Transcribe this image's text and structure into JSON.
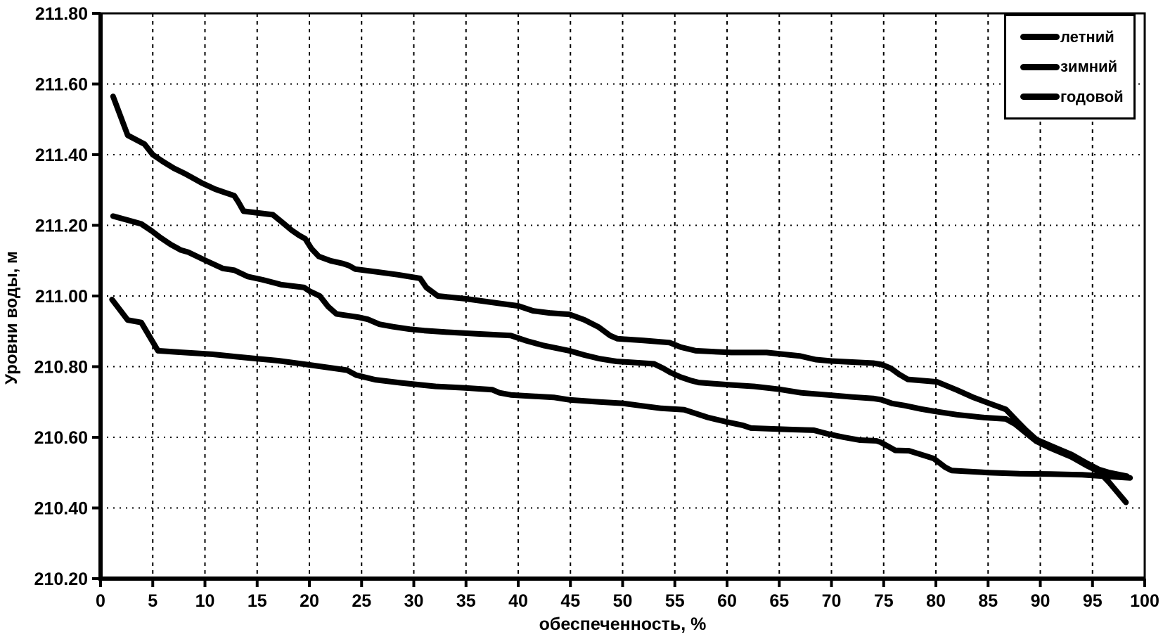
{
  "chart_data": {
    "type": "line",
    "title": "",
    "xlabel": "обеспеченность, %",
    "ylabel": "Уровни воды, м",
    "xlim": [
      0,
      100
    ],
    "ylim": [
      210.2,
      211.8
    ],
    "x_ticks": [
      0,
      5,
      10,
      15,
      20,
      25,
      30,
      35,
      40,
      45,
      50,
      55,
      60,
      65,
      70,
      75,
      80,
      85,
      90,
      95,
      100
    ],
    "y_tick_labels": [
      "211.80",
      "211.60",
      "211.40",
      "211.20",
      "211.00",
      "210.80",
      "210.60",
      "210.40",
      "210.20"
    ],
    "grid": "dashed",
    "legend_position": "top-right",
    "line_color": "#000000",
    "line_width": 8,
    "series": [
      {
        "id": "letniy",
        "name": "летний",
        "points": [
          [
            1.2,
            211.565
          ],
          [
            2.6,
            211.455
          ],
          [
            4.2,
            211.43
          ],
          [
            5.0,
            211.4
          ],
          [
            6.0,
            211.38
          ],
          [
            7.0,
            211.362
          ],
          [
            8.1,
            211.346
          ],
          [
            9.7,
            211.32
          ],
          [
            11.0,
            211.302
          ],
          [
            12.0,
            211.292
          ],
          [
            12.8,
            211.284
          ],
          [
            13.2,
            211.266
          ],
          [
            13.7,
            211.24
          ],
          [
            16.5,
            211.23
          ],
          [
            17.5,
            211.206
          ],
          [
            18.3,
            211.186
          ],
          [
            19.0,
            211.172
          ],
          [
            19.6,
            211.162
          ],
          [
            20.2,
            211.134
          ],
          [
            20.9,
            211.112
          ],
          [
            22.0,
            211.1
          ],
          [
            23.2,
            211.092
          ],
          [
            23.8,
            211.086
          ],
          [
            24.4,
            211.076
          ],
          [
            26.5,
            211.068
          ],
          [
            28.5,
            211.06
          ],
          [
            30.6,
            211.05
          ],
          [
            31.2,
            211.024
          ],
          [
            32.3,
            211.0
          ],
          [
            35.0,
            210.992
          ],
          [
            38.0,
            210.98
          ],
          [
            40.0,
            210.972
          ],
          [
            41.4,
            210.958
          ],
          [
            43.0,
            210.952
          ],
          [
            44.9,
            210.948
          ],
          [
            46.3,
            210.933
          ],
          [
            47.7,
            210.912
          ],
          [
            48.8,
            210.888
          ],
          [
            49.5,
            210.879
          ],
          [
            52.0,
            210.874
          ],
          [
            54.5,
            210.868
          ],
          [
            55.6,
            210.855
          ],
          [
            57.0,
            210.845
          ],
          [
            60.4,
            210.84
          ],
          [
            63.8,
            210.84
          ],
          [
            67.0,
            210.83
          ],
          [
            68.5,
            210.82
          ],
          [
            70.0,
            210.816
          ],
          [
            74.0,
            210.81
          ],
          [
            74.8,
            210.806
          ],
          [
            75.7,
            210.795
          ],
          [
            76.5,
            210.778
          ],
          [
            77.3,
            210.764
          ],
          [
            80.1,
            210.757
          ],
          [
            82.0,
            210.734
          ],
          [
            83.5,
            210.714
          ],
          [
            85.3,
            210.694
          ],
          [
            86.7,
            210.679
          ],
          [
            87.8,
            210.645
          ],
          [
            88.6,
            210.621
          ],
          [
            89.6,
            210.594
          ],
          [
            91.0,
            210.576
          ],
          [
            93.0,
            210.551
          ],
          [
            94.5,
            210.526
          ],
          [
            95.6,
            210.509
          ],
          [
            96.6,
            210.5
          ],
          [
            98.3,
            210.49
          ]
        ]
      },
      {
        "id": "zimniy",
        "name": "зимний",
        "points": [
          [
            1.2,
            211.226
          ],
          [
            2.7,
            211.214
          ],
          [
            3.9,
            211.204
          ],
          [
            4.9,
            211.184
          ],
          [
            5.7,
            211.166
          ],
          [
            6.7,
            211.146
          ],
          [
            7.7,
            211.13
          ],
          [
            8.4,
            211.124
          ],
          [
            10.1,
            211.1
          ],
          [
            11.7,
            211.078
          ],
          [
            12.8,
            211.073
          ],
          [
            14.1,
            211.055
          ],
          [
            15.5,
            211.046
          ],
          [
            16.8,
            211.036
          ],
          [
            17.3,
            211.032
          ],
          [
            19.5,
            211.024
          ],
          [
            20.0,
            211.014
          ],
          [
            21.0,
            211.0
          ],
          [
            21.8,
            210.97
          ],
          [
            22.6,
            210.949
          ],
          [
            24.7,
            210.94
          ],
          [
            25.6,
            210.934
          ],
          [
            26.7,
            210.92
          ],
          [
            28.0,
            210.913
          ],
          [
            29.6,
            210.906
          ],
          [
            31.0,
            210.902
          ],
          [
            33.0,
            210.898
          ],
          [
            36.0,
            210.893
          ],
          [
            39.3,
            210.888
          ],
          [
            40.8,
            210.873
          ],
          [
            42.4,
            210.86
          ],
          [
            44.9,
            210.845
          ],
          [
            46.3,
            210.833
          ],
          [
            47.7,
            210.823
          ],
          [
            49.4,
            210.815
          ],
          [
            51.0,
            210.812
          ],
          [
            53.0,
            210.808
          ],
          [
            53.9,
            210.795
          ],
          [
            54.6,
            210.783
          ],
          [
            55.6,
            210.77
          ],
          [
            56.5,
            210.761
          ],
          [
            57.3,
            210.755
          ],
          [
            60.0,
            210.749
          ],
          [
            62.6,
            210.744
          ],
          [
            65.0,
            210.736
          ],
          [
            67.1,
            210.726
          ],
          [
            69.6,
            210.72
          ],
          [
            72.0,
            210.714
          ],
          [
            74.0,
            210.71
          ],
          [
            74.8,
            210.706
          ],
          [
            75.8,
            210.696
          ],
          [
            77.0,
            210.69
          ],
          [
            78.6,
            210.68
          ],
          [
            79.8,
            210.674
          ],
          [
            82.0,
            210.664
          ],
          [
            84.6,
            210.656
          ],
          [
            86.7,
            210.652
          ],
          [
            87.6,
            210.637
          ],
          [
            88.6,
            210.613
          ],
          [
            89.6,
            210.589
          ],
          [
            91.0,
            210.569
          ],
          [
            93.0,
            210.544
          ],
          [
            94.5,
            210.519
          ],
          [
            95.6,
            210.503
          ],
          [
            96.6,
            210.472
          ],
          [
            97.6,
            210.437
          ],
          [
            98.2,
            210.416
          ]
        ]
      },
      {
        "id": "godovoy",
        "name": "годовой",
        "points": [
          [
            1.1,
            210.99
          ],
          [
            2.6,
            210.932
          ],
          [
            3.9,
            210.925
          ],
          [
            5.5,
            210.845
          ],
          [
            8.0,
            210.84
          ],
          [
            10.7,
            210.835
          ],
          [
            13.0,
            210.828
          ],
          [
            15.1,
            210.822
          ],
          [
            17.0,
            210.817
          ],
          [
            20.0,
            210.805
          ],
          [
            23.6,
            210.79
          ],
          [
            24.5,
            210.776
          ],
          [
            26.3,
            210.763
          ],
          [
            28.8,
            210.754
          ],
          [
            32.1,
            210.744
          ],
          [
            34.8,
            210.74
          ],
          [
            37.5,
            210.735
          ],
          [
            38.2,
            210.726
          ],
          [
            39.3,
            210.72
          ],
          [
            41.0,
            210.717
          ],
          [
            43.4,
            210.713
          ],
          [
            44.9,
            210.706
          ],
          [
            47.8,
            210.7
          ],
          [
            50.1,
            210.696
          ],
          [
            51.6,
            210.69
          ],
          [
            53.7,
            210.682
          ],
          [
            55.9,
            210.678
          ],
          [
            58.2,
            210.656
          ],
          [
            59.9,
            210.644
          ],
          [
            61.5,
            210.634
          ],
          [
            62.3,
            210.626
          ],
          [
            66.0,
            210.622
          ],
          [
            68.3,
            210.62
          ],
          [
            69.6,
            210.61
          ],
          [
            71.2,
            210.6
          ],
          [
            72.7,
            210.592
          ],
          [
            74.3,
            210.59
          ],
          [
            74.7,
            210.586
          ],
          [
            75.7,
            210.57
          ],
          [
            76.1,
            210.563
          ],
          [
            77.4,
            210.562
          ],
          [
            78.7,
            210.55
          ],
          [
            79.8,
            210.54
          ],
          [
            80.9,
            210.515
          ],
          [
            81.5,
            210.506
          ],
          [
            85.0,
            210.5
          ],
          [
            88.0,
            210.497
          ],
          [
            91.0,
            210.496
          ],
          [
            94.0,
            210.494
          ],
          [
            96.0,
            210.49
          ],
          [
            98.6,
            210.485
          ]
        ]
      }
    ]
  }
}
